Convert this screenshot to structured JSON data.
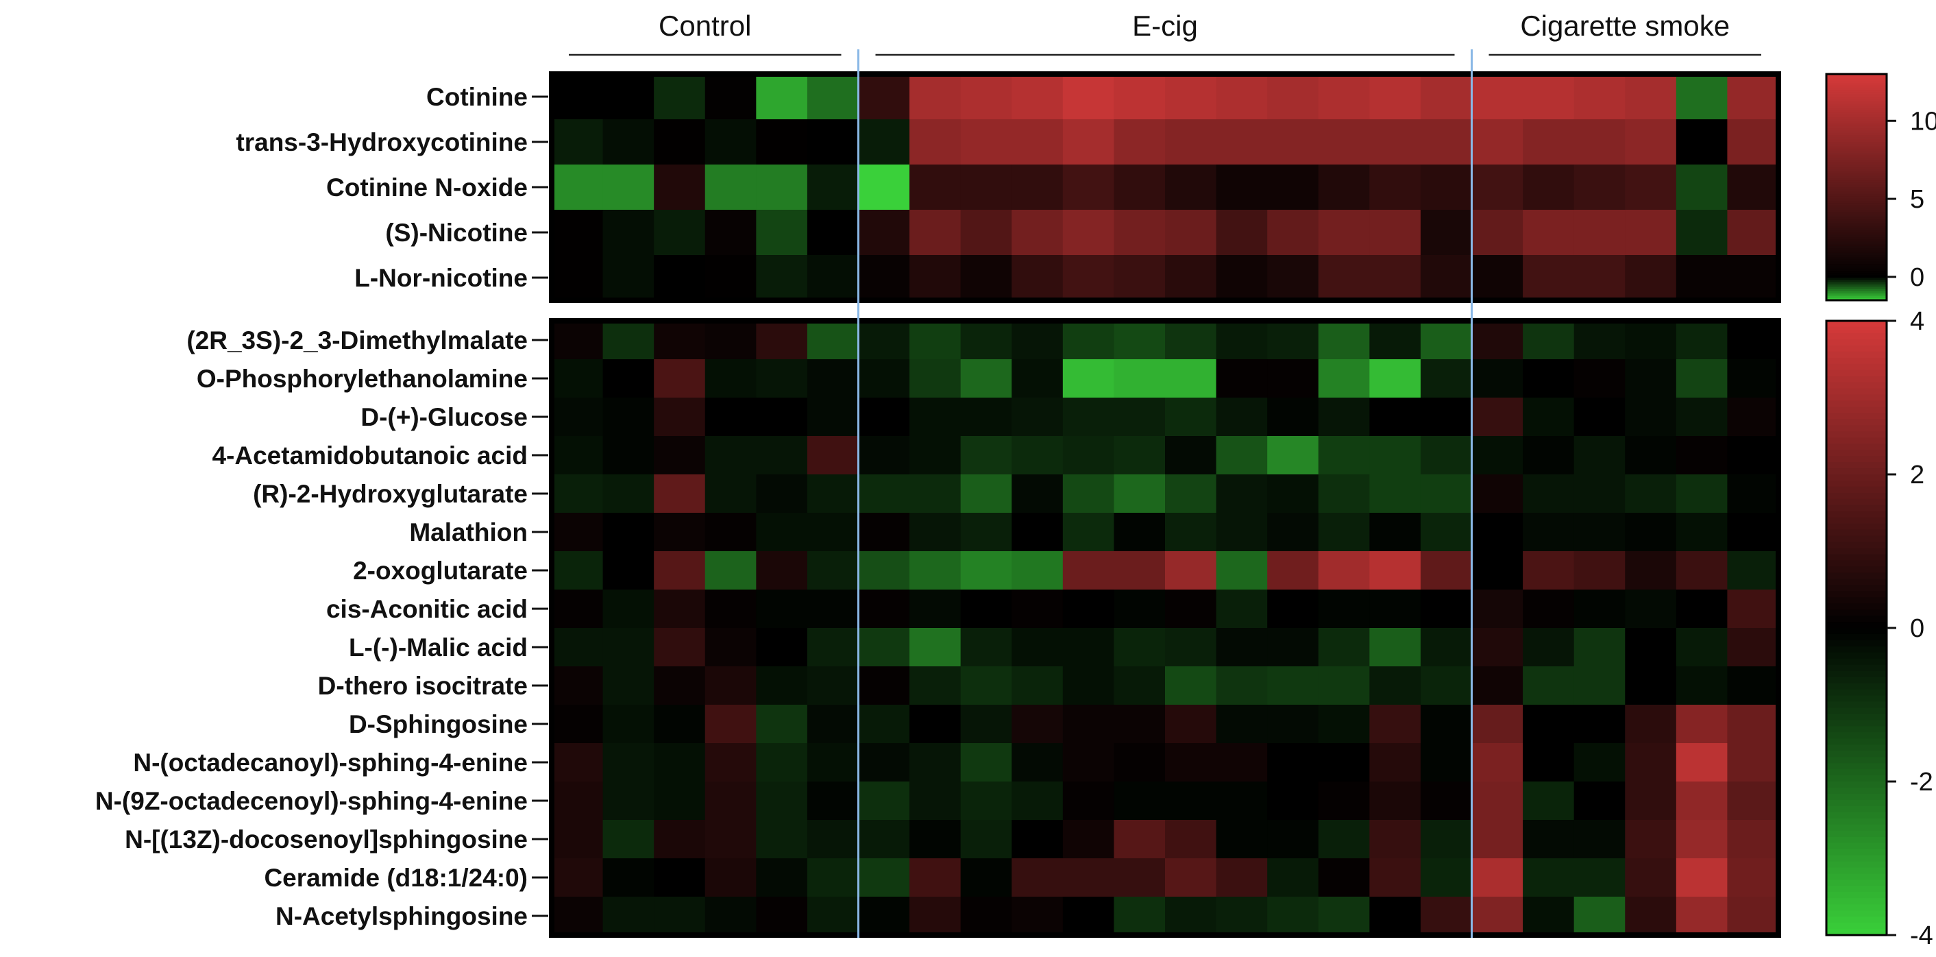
{
  "chart_data": {
    "type": "heatmap",
    "groups": [
      {
        "label": "Control",
        "columns": 6
      },
      {
        "label": "E-cig",
        "columns": 12
      },
      {
        "label": "Cigarette smoke",
        "columns": 6
      }
    ],
    "colors": {
      "high": "#d63a3a",
      "mid": "#000000",
      "low": "#3ad03a",
      "separator": "#8ab8e6"
    },
    "panels": [
      {
        "name": "nicotine-panel",
        "range": [
          -1.5,
          13
        ],
        "colorbar_ticks": [
          "10",
          "5",
          "0"
        ],
        "colorbar_tick_values": [
          10,
          5,
          0
        ],
        "rows": [
          {
            "label": "Cotinine",
            "values": [
              0,
              0,
              -0.3,
              0.2,
              -1.2,
              -0.8,
              3,
              10,
              10.5,
              11,
              12,
              11.5,
              11,
              10.5,
              10,
              10.5,
              11,
              10,
              11,
              11,
              10.5,
              10,
              -0.8,
              9
            ]
          },
          {
            "label": "trans-3-Hydroxycotinine",
            "values": [
              -0.2,
              -0.1,
              0.1,
              -0.1,
              0.1,
              0,
              -0.2,
              8.5,
              9,
              9,
              10,
              8.5,
              8,
              8,
              8,
              8,
              8,
              8,
              9,
              8,
              8,
              8.5,
              0,
              7.5
            ]
          },
          {
            "label": "Cotinine N-oxide",
            "values": [
              -1,
              -1,
              2,
              -0.9,
              -0.9,
              -0.2,
              -1.5,
              3,
              3,
              3,
              4,
              3,
              2,
              1,
              1,
              2,
              3,
              2.5,
              4,
              3,
              3.5,
              4,
              -0.5,
              2
            ]
          },
          {
            "label": "(S)-Nicotine",
            "values": [
              0.1,
              -0.1,
              -0.2,
              0.4,
              -0.5,
              0,
              2,
              6.5,
              5,
              7,
              8,
              7,
              6.5,
              4,
              6,
              7,
              7,
              1.5,
              6,
              7.5,
              7.5,
              7.5,
              -0.3,
              6
            ]
          },
          {
            "label": "L-Nor-nicotine",
            "values": [
              0.1,
              -0.1,
              0,
              0.1,
              -0.2,
              -0.1,
              0.5,
              2,
              1,
              3,
              4,
              3.5,
              2.5,
              1,
              1.5,
              4,
              4,
              2,
              1,
              4,
              4,
              3,
              0.5,
              0.5
            ]
          }
        ]
      },
      {
        "name": "metabolite-panel",
        "range": [
          -4,
          4
        ],
        "colorbar_ticks": [
          "4",
          "2",
          "0",
          "-2",
          "-4"
        ],
        "colorbar_tick_values": [
          4,
          2,
          0,
          -2,
          -4
        ],
        "rows": [
          {
            "label": "(2R_3S)-2_3-Dimethylmalate",
            "values": [
              0.2,
              -0.9,
              0.3,
              0.2,
              0.8,
              -1.6,
              -0.5,
              -1.2,
              -0.7,
              -0.4,
              -1.2,
              -1.4,
              -1,
              -0.5,
              -0.6,
              -1.8,
              -0.5,
              -1.8,
              0.6,
              -1,
              -0.4,
              -0.3,
              -0.7,
              0
            ]
          },
          {
            "label": "O-Phosphorylethanolamine",
            "values": [
              -0.3,
              0,
              1.4,
              -0.3,
              -0.4,
              -0.2,
              -0.3,
              -1.1,
              -2,
              -0.3,
              -3.6,
              -3.4,
              -3.4,
              0.1,
              0.1,
              -2.5,
              -3.6,
              -0.6,
              -0.2,
              0,
              0.1,
              -0.2,
              -1.3,
              -0.1
            ]
          },
          {
            "label": "D-(+)-Glucose",
            "values": [
              -0.2,
              -0.1,
              0.7,
              0,
              0,
              -0.2,
              0,
              -0.3,
              -0.3,
              -0.4,
              -0.6,
              -0.6,
              -0.8,
              -0.4,
              -0.1,
              -0.4,
              0,
              0,
              1,
              -0.3,
              0,
              -0.2,
              -0.4,
              0.2
            ]
          },
          {
            "label": "4-Acetamidobutanoic acid",
            "values": [
              -0.3,
              -0.1,
              0.2,
              -0.4,
              -0.4,
              1.2,
              -0.2,
              -0.3,
              -1,
              -0.8,
              -0.7,
              -0.8,
              -0.2,
              -1.6,
              -2.6,
              -1.2,
              -1.2,
              -0.8,
              -0.3,
              -0.1,
              -0.4,
              -0.1,
              0.1,
              0
            ]
          },
          {
            "label": "(R)-2-Hydroxyglutarate",
            "values": [
              -0.6,
              -0.5,
              1.8,
              -0.4,
              -0.2,
              -0.5,
              -0.8,
              -0.8,
              -1.8,
              -0.2,
              -1.4,
              -2,
              -1.3,
              -0.4,
              -0.3,
              -0.9,
              -1.2,
              -1.2,
              0.3,
              -0.4,
              -0.4,
              -0.6,
              -0.9,
              -0.1
            ]
          },
          {
            "label": "Malathion",
            "values": [
              0.2,
              0,
              0.2,
              0.1,
              -0.3,
              -0.3,
              0.1,
              -0.4,
              -0.6,
              0,
              -0.8,
              -0.1,
              -0.6,
              -0.4,
              -0.2,
              -0.6,
              -0.1,
              -0.7,
              0,
              -0.2,
              -0.2,
              -0.1,
              -0.3,
              0
            ]
          },
          {
            "label": "2-oxoglutarate",
            "values": [
              -0.7,
              0,
              1.6,
              -1.9,
              0.5,
              -0.6,
              -1.5,
              -2,
              -2.5,
              -2.3,
              2,
              2,
              2.8,
              -2,
              2.1,
              3,
              3.4,
              1.8,
              0,
              1.4,
              1.2,
              0.5,
              1.1,
              -0.6
            ]
          },
          {
            "label": "cis-Aconitic acid",
            "values": [
              0.1,
              -0.3,
              0.5,
              0.1,
              -0.1,
              -0.1,
              0.1,
              -0.2,
              0,
              0.1,
              0,
              -0.1,
              0.1,
              -0.6,
              0,
              -0.1,
              -0.1,
              0,
              0.4,
              0.1,
              -0.1,
              -0.2,
              0,
              1.2
            ]
          },
          {
            "label": "L-(-)-Malic acid",
            "values": [
              -0.4,
              -0.4,
              0.9,
              0.2,
              0,
              -0.6,
              -1.1,
              -2.2,
              -0.6,
              -0.3,
              -0.3,
              -0.7,
              -0.6,
              -0.2,
              -0.2,
              -0.8,
              -1.8,
              -0.5,
              0.6,
              -0.4,
              -1,
              0,
              -0.5,
              0.8
            ]
          },
          {
            "label": "D-thero isocitrate",
            "values": [
              0.2,
              -0.4,
              0.2,
              0.5,
              -0.3,
              -0.4,
              0.1,
              -0.6,
              -0.9,
              -0.7,
              -0.3,
              -0.5,
              -1.4,
              -1,
              -1.1,
              -1.1,
              -0.5,
              -0.7,
              0.3,
              -1,
              -1,
              0,
              -0.3,
              -0.1
            ]
          },
          {
            "label": "D-Sphingosine",
            "values": [
              0.1,
              -0.3,
              -0.1,
              1.2,
              -1,
              -0.2,
              -0.5,
              0,
              -0.4,
              0.4,
              0.2,
              0.2,
              0.7,
              -0.2,
              -0.2,
              -0.3,
              1,
              -0.1,
              1.9,
              0,
              0,
              0.8,
              2.5,
              2
            ]
          },
          {
            "label": "N-(octadecanoyl)-sphing-4-enine",
            "values": [
              0.6,
              -0.4,
              -0.3,
              0.7,
              -0.7,
              -0.3,
              -0.2,
              -0.4,
              -1.1,
              -0.2,
              0.2,
              0.1,
              0.3,
              0.3,
              0,
              0,
              0.7,
              -0.1,
              2.3,
              0,
              -0.3,
              0.9,
              3.5,
              2
            ]
          },
          {
            "label": "N-(9Z-octadecenoyl)-sphing-4-enine",
            "values": [
              0.5,
              -0.4,
              -0.3,
              0.6,
              -0.6,
              -0.1,
              -0.9,
              -0.4,
              -0.7,
              -0.5,
              0.1,
              -0.1,
              -0.1,
              -0.1,
              0,
              0.1,
              0.5,
              0.1,
              2.2,
              -0.7,
              0,
              0.9,
              2.7,
              1.7
            ]
          },
          {
            "label": "N-[(13Z)-docosenoyl]sphingosine",
            "values": [
              0.5,
              -0.8,
              0.5,
              0.6,
              -0.6,
              -0.4,
              -0.5,
              -0.1,
              -0.6,
              0,
              0.3,
              1.6,
              1.2,
              -0.1,
              -0.1,
              -0.6,
              1,
              -0.6,
              2.2,
              -0.2,
              -0.2,
              1.1,
              2.8,
              2
            ]
          },
          {
            "label": "Ceramide (d18:1/24:0)",
            "values": [
              0.6,
              -0.1,
              0,
              0.5,
              -0.2,
              -0.7,
              -1.1,
              1.2,
              -0.1,
              1,
              1,
              1,
              1.6,
              1.1,
              -0.5,
              0.1,
              1.1,
              -0.7,
              3.2,
              -0.7,
              -0.7,
              1,
              3.5,
              2.1
            ]
          },
          {
            "label": "N-Acetylsphingosine",
            "values": [
              0.2,
              -0.4,
              -0.4,
              -0.2,
              0.1,
              -0.5,
              -0.1,
              0.7,
              0.1,
              0.2,
              0,
              -0.9,
              -0.5,
              -0.6,
              -0.8,
              -1,
              0,
              1,
              2.4,
              -0.3,
              -1.8,
              0.8,
              2.8,
              2
            ]
          }
        ]
      }
    ]
  }
}
